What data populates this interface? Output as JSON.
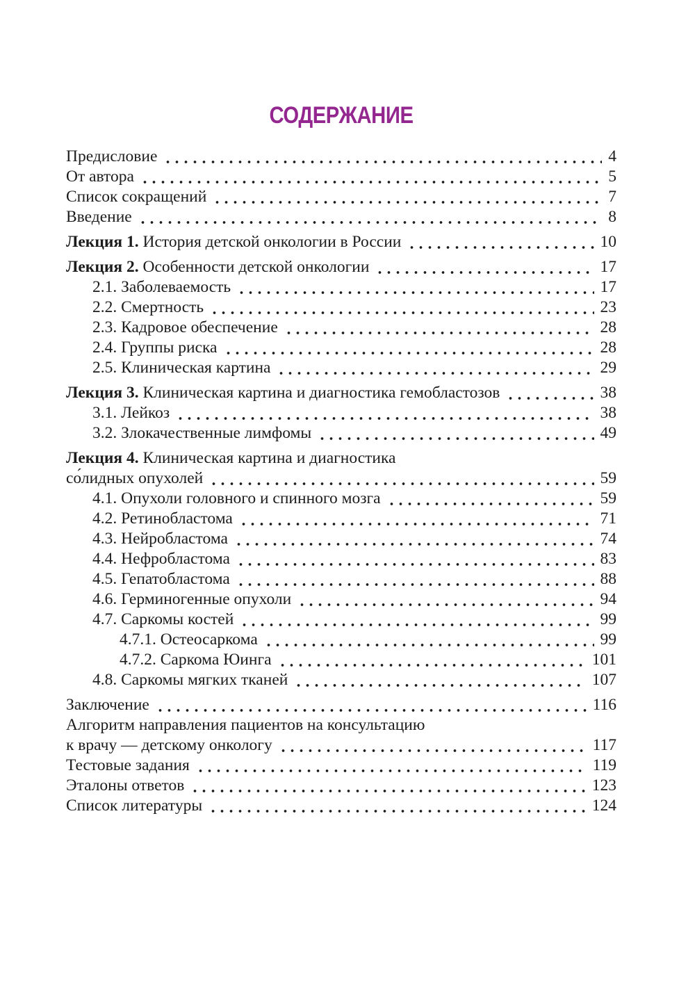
{
  "toc": {
    "title": "СОДЕРЖАНИЕ",
    "title_color": "#93278f",
    "text_color": "#1c1c1c",
    "entries": [
      {
        "label": "Предисловие",
        "page": "4",
        "level": 0
      },
      {
        "label": "От автора",
        "page": "5",
        "level": 0
      },
      {
        "label": "Список сокращений",
        "page": "7",
        "level": 0
      },
      {
        "label": "Введение",
        "page": "8",
        "level": 0
      },
      {
        "bold": "Лекция 1.",
        "label": " История детской онкологии в России",
        "page": "10",
        "level": 0,
        "group": true
      },
      {
        "bold": "Лекция 2.",
        "label": " Особенности детской онкологии",
        "page": "17",
        "level": 0,
        "group": true
      },
      {
        "label": "2.1. Заболеваемость",
        "page": "17",
        "level": 1
      },
      {
        "label": "2.2. Смертность",
        "page": "23",
        "level": 1
      },
      {
        "label": "2.3. Кадровое обеспечение",
        "page": "28",
        "level": 1
      },
      {
        "label": "2.4. Группы риска",
        "page": "28",
        "level": 1
      },
      {
        "label": "2.5. Клиническая картина",
        "page": "29",
        "level": 1
      },
      {
        "bold": "Лекция 3.",
        "label": " Клиническая картина и диагностика гемобластозов",
        "page": "38",
        "level": 0,
        "group": true
      },
      {
        "label": "3.1. Лейкоз",
        "page": "38",
        "level": 1
      },
      {
        "label": "3.2. Злокачественные лимфомы",
        "page": "49",
        "level": 1
      },
      {
        "bold": "Лекция 4.",
        "label": " Клиническая картина и диагностика",
        "page": null,
        "level": 0,
        "group": true
      },
      {
        "label": "со́лидных опухолей",
        "page": "59",
        "level": 0
      },
      {
        "label": "4.1. Опухоли головного и спинного мозга",
        "page": "59",
        "level": 1
      },
      {
        "label": "4.2. Ретинобластома",
        "page": "71",
        "level": 1
      },
      {
        "label": "4.3. Нейробластома",
        "page": "74",
        "level": 1
      },
      {
        "label": "4.4. Нефробластома",
        "page": "83",
        "level": 1
      },
      {
        "label": "4.5. Гепатобластома",
        "page": "88",
        "level": 1
      },
      {
        "label": "4.6. Герминогенные опухоли",
        "page": "94",
        "level": 1
      },
      {
        "label": "4.7. Саркомы костей",
        "page": "99",
        "level": 1
      },
      {
        "label": "4.7.1. Остеосаркома",
        "page": "99",
        "level": 2
      },
      {
        "label": "4.7.2. Саркома Юинга",
        "page": "101",
        "level": 2
      },
      {
        "label": "4.8. Саркомы мягких тканей",
        "page": "107",
        "level": 1
      },
      {
        "label": "Заключение",
        "page": "116",
        "level": 0,
        "group": true
      },
      {
        "label": "Алгоритм направления пациентов на консультацию",
        "page": null,
        "level": 0
      },
      {
        "label": "к врачу — детскому онкологу",
        "page": "117",
        "level": 0
      },
      {
        "label": "Тестовые задания",
        "page": "119",
        "level": 0
      },
      {
        "label": "Эталоны ответов",
        "page": "123",
        "level": 0
      },
      {
        "label": "Список литературы",
        "page": "124",
        "level": 0
      }
    ]
  }
}
